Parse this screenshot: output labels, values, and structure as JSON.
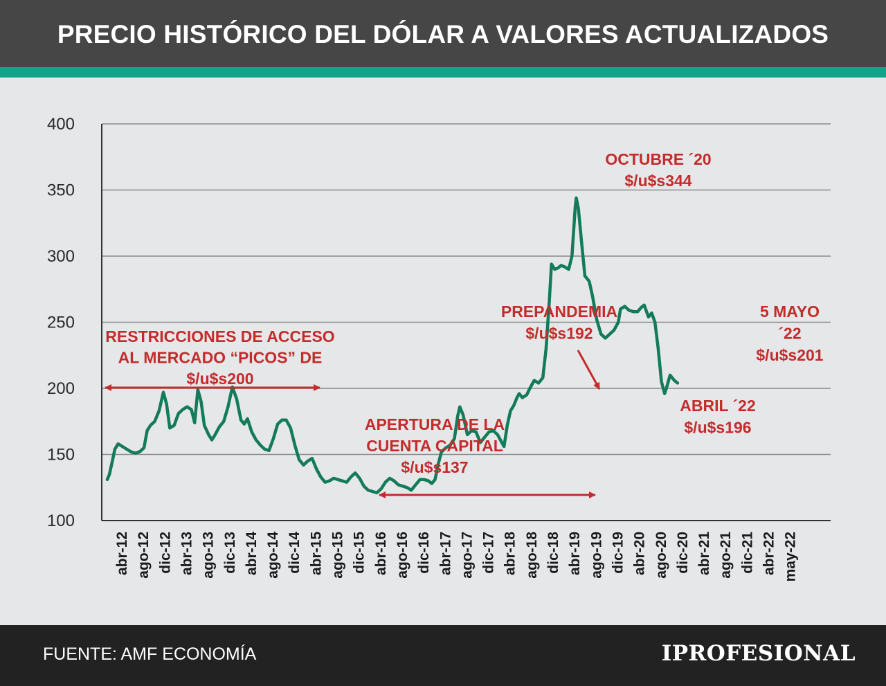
{
  "header": {
    "title": "PRECIO HISTÓRICO DEL DÓLAR A VALORES ACTUALIZADOS"
  },
  "footer": {
    "source": "FUENTE: AMF ECONOMÍA",
    "logo": "IPROFESIONAL"
  },
  "colors": {
    "header_bg": "#464646",
    "accent": "#10a58a",
    "line": "#137a5a",
    "annotation": "#c42b2b",
    "footer_bg": "#222222",
    "background": "#e6e7e9"
  },
  "chart_data": {
    "type": "line",
    "title": "PRECIO HISTÓRICO DEL DÓLAR A VALORES ACTUALIZADOS",
    "xlabel": "",
    "ylabel": "",
    "ylim": [
      100,
      400
    ],
    "yticks": [
      100,
      150,
      200,
      250,
      300,
      350,
      400
    ],
    "grid": true,
    "x_tick_labels": [
      "abr-12",
      "ago-12",
      "dic-12",
      "abr-13",
      "ago-13",
      "dic-13",
      "abr-14",
      "ago-14",
      "dic-14",
      "abr-15",
      "ago-15",
      "dic-15",
      "abr-16",
      "ago-16",
      "dic-16",
      "abr-17",
      "ago-17",
      "dic-17",
      "abr-18",
      "ago-18",
      "dic-18",
      "abr-19",
      "ago-19",
      "dic-19",
      "abr-20",
      "ago-20",
      "dic-20",
      "abr-21",
      "ago-21",
      "dic-21",
      "abr-22",
      "may-22"
    ],
    "x_start": "2012-04",
    "x_step_months": 4,
    "series": [
      {
        "name": "",
        "values": [
          [
            0,
            131
          ],
          [
            0.1,
            135
          ],
          [
            0.22,
            144
          ],
          [
            0.35,
            154
          ],
          [
            0.5,
            158
          ],
          [
            0.7,
            156
          ],
          [
            0.9,
            154
          ],
          [
            1.1,
            152
          ],
          [
            1.3,
            151
          ],
          [
            1.5,
            152
          ],
          [
            1.7,
            155
          ],
          [
            1.85,
            168
          ],
          [
            2.0,
            172
          ],
          [
            2.2,
            175
          ],
          [
            2.4,
            183
          ],
          [
            2.6,
            197
          ],
          [
            2.75,
            188
          ],
          [
            2.9,
            170
          ],
          [
            3.1,
            172
          ],
          [
            3.3,
            181
          ],
          [
            3.5,
            184
          ],
          [
            3.7,
            186
          ],
          [
            3.9,
            184
          ],
          [
            4.05,
            174
          ],
          [
            4.2,
            199
          ],
          [
            4.35,
            190
          ],
          [
            4.5,
            172
          ],
          [
            4.7,
            165
          ],
          [
            4.85,
            161
          ],
          [
            5.0,
            165
          ],
          [
            5.2,
            171
          ],
          [
            5.4,
            175
          ],
          [
            5.6,
            186
          ],
          [
            5.8,
            201
          ],
          [
            6.0,
            192
          ],
          [
            6.2,
            176
          ],
          [
            6.35,
            173
          ],
          [
            6.5,
            177
          ],
          [
            6.7,
            167
          ],
          [
            6.9,
            161
          ],
          [
            7.1,
            157
          ],
          [
            7.3,
            154
          ],
          [
            7.5,
            153
          ],
          [
            7.7,
            162
          ],
          [
            7.9,
            173
          ],
          [
            8.1,
            176
          ],
          [
            8.3,
            176
          ],
          [
            8.5,
            170
          ],
          [
            8.7,
            157
          ],
          [
            8.9,
            146
          ],
          [
            9.1,
            142
          ],
          [
            9.3,
            145
          ],
          [
            9.5,
            147
          ],
          [
            9.7,
            139
          ],
          [
            9.9,
            133
          ],
          [
            10.1,
            129
          ],
          [
            10.3,
            130
          ],
          [
            10.5,
            132
          ],
          [
            10.7,
            131
          ],
          [
            10.9,
            130
          ],
          [
            11.1,
            129
          ],
          [
            11.3,
            133
          ],
          [
            11.5,
            136
          ],
          [
            11.7,
            132
          ],
          [
            11.9,
            126
          ],
          [
            12.1,
            123
          ],
          [
            12.3,
            122
          ],
          [
            12.5,
            121
          ],
          [
            12.7,
            124
          ],
          [
            12.9,
            129
          ],
          [
            13.1,
            132
          ],
          [
            13.3,
            130
          ],
          [
            13.5,
            127
          ],
          [
            13.7,
            126
          ],
          [
            13.9,
            125
          ],
          [
            14.1,
            123
          ],
          [
            14.3,
            127
          ],
          [
            14.5,
            131
          ],
          [
            14.7,
            131
          ],
          [
            14.9,
            130
          ],
          [
            15.05,
            128
          ],
          [
            15.2,
            131
          ],
          [
            15.35,
            143
          ],
          [
            15.5,
            152
          ],
          [
            15.7,
            155
          ],
          [
            15.9,
            157
          ],
          [
            16.1,
            162
          ],
          [
            16.25,
            179
          ],
          [
            16.35,
            186
          ],
          [
            16.5,
            180
          ],
          [
            16.7,
            165
          ],
          [
            16.9,
            168
          ],
          [
            17.1,
            167
          ],
          [
            17.3,
            159
          ],
          [
            17.5,
            163
          ],
          [
            17.7,
            167
          ],
          [
            17.9,
            168
          ],
          [
            18.1,
            165
          ],
          [
            18.3,
            159
          ],
          [
            18.4,
            156
          ],
          [
            18.55,
            172
          ],
          [
            18.7,
            183
          ],
          [
            18.85,
            187
          ],
          [
            19.0,
            193
          ],
          [
            19.1,
            196
          ],
          [
            19.25,
            193
          ],
          [
            19.45,
            195
          ],
          [
            19.6,
            200
          ],
          [
            19.8,
            206
          ],
          [
            20.0,
            204
          ],
          [
            20.2,
            208
          ],
          [
            20.35,
            230
          ],
          [
            20.5,
            266
          ],
          [
            20.6,
            294
          ],
          [
            20.75,
            290
          ],
          [
            20.9,
            291
          ],
          [
            21.05,
            293
          ],
          [
            21.2,
            292
          ],
          [
            21.4,
            290
          ],
          [
            21.55,
            300
          ],
          [
            21.7,
            337
          ],
          [
            21.75,
            344
          ],
          [
            21.85,
            336
          ],
          [
            22.0,
            310
          ],
          [
            22.15,
            285
          ],
          [
            22.35,
            281
          ],
          [
            22.5,
            270
          ],
          [
            22.7,
            252
          ],
          [
            22.9,
            241
          ],
          [
            23.1,
            238
          ],
          [
            23.3,
            241
          ],
          [
            23.5,
            244
          ],
          [
            23.7,
            250
          ],
          [
            23.8,
            260
          ],
          [
            24.0,
            262
          ],
          [
            24.2,
            259
          ],
          [
            24.4,
            258
          ],
          [
            24.6,
            258
          ],
          [
            24.75,
            261
          ],
          [
            24.9,
            263
          ],
          [
            25.1,
            254
          ],
          [
            25.25,
            257
          ],
          [
            25.4,
            250
          ],
          [
            25.55,
            230
          ],
          [
            25.7,
            205
          ],
          [
            25.85,
            196
          ],
          [
            25.95,
            201
          ],
          [
            26.1,
            210
          ],
          [
            26.3,
            206
          ],
          [
            26.45,
            204
          ]
        ]
      }
    ],
    "annotations": [
      {
        "lines": [
          "RESTRICCIONES DE ACCESO",
          "AL MERCADO “PICOS” DE",
          "$/u$s200"
        ]
      },
      {
        "lines": [
          "APERTURA DE LA",
          "CUENTA CAPITAL",
          "$/u$s137"
        ]
      },
      {
        "lines": [
          "PREPANDEMIA",
          "$/u$s192"
        ]
      },
      {
        "lines": [
          "OCTUBRE ´20",
          "$/u$s344"
        ]
      },
      {
        "lines": [
          "5 MAYO",
          "´22",
          "$/u$s201"
        ]
      },
      {
        "lines": [
          "ABRIL ´22",
          "$/u$s196"
        ]
      }
    ]
  }
}
